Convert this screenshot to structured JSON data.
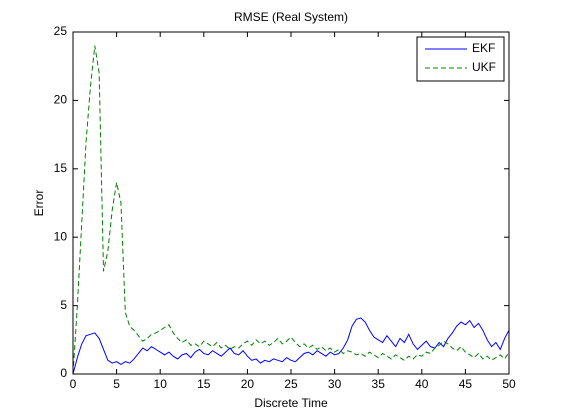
{
  "chart_data": {
    "type": "line",
    "title": "RMSE (Real System)",
    "xlabel": "Discrete Time",
    "ylabel": "Error",
    "x": [
      0,
      0.5,
      1,
      1.5,
      2,
      2.5,
      3,
      3.5,
      4,
      4.5,
      5,
      5.5,
      6,
      6.5,
      7,
      7.5,
      8,
      8.5,
      9,
      9.5,
      10,
      10.5,
      11,
      11.5,
      12,
      12.5,
      13,
      13.5,
      14,
      14.5,
      15,
      15.5,
      16,
      16.5,
      17,
      17.5,
      18,
      18.5,
      19,
      19.5,
      20,
      20.5,
      21,
      21.5,
      22,
      22.5,
      23,
      23.5,
      24,
      24.5,
      25,
      25.5,
      26,
      26.5,
      27,
      27.5,
      28,
      28.5,
      29,
      29.5,
      30,
      30.5,
      31,
      31.5,
      32,
      32.5,
      33,
      33.5,
      34,
      34.5,
      35,
      35.5,
      36,
      36.5,
      37,
      37.5,
      38,
      38.5,
      39,
      39.5,
      40,
      40.5,
      41,
      41.5,
      42,
      42.5,
      43,
      43.5,
      44,
      44.5,
      45,
      45.5,
      46,
      46.5,
      47,
      47.5,
      48,
      48.5,
      49,
      49.5,
      50
    ],
    "series": [
      {
        "name": "EKF",
        "color": "#0000ff",
        "linestyle": "solid",
        "values": [
          0,
          1.2,
          2.2,
          2.8,
          2.9,
          3.0,
          2.6,
          1.8,
          1.0,
          0.8,
          0.9,
          0.7,
          0.9,
          0.8,
          1.1,
          1.5,
          1.9,
          1.7,
          2.0,
          1.8,
          1.6,
          1.4,
          1.6,
          1.3,
          1.1,
          1.4,
          1.5,
          1.2,
          1.6,
          1.8,
          1.5,
          1.4,
          1.7,
          1.5,
          1.3,
          1.6,
          1.9,
          1.5,
          1.4,
          1.7,
          1.3,
          1.0,
          1.1,
          0.8,
          1.0,
          0.9,
          1.1,
          1.0,
          0.9,
          1.2,
          1.0,
          0.9,
          1.2,
          1.5,
          1.6,
          1.4,
          1.7,
          1.5,
          1.3,
          1.6,
          1.4,
          1.5,
          1.9,
          2.5,
          3.5,
          4.0,
          4.1,
          3.8,
          3.2,
          2.7,
          2.5,
          2.3,
          2.8,
          2.4,
          2.0,
          2.6,
          2.3,
          2.9,
          2.2,
          1.8,
          2.1,
          2.4,
          2.0,
          1.9,
          2.3,
          2.0,
          2.6,
          3.0,
          3.5,
          3.8,
          3.6,
          3.9,
          3.4,
          3.7,
          3.2,
          2.5,
          2.0,
          2.3,
          1.8,
          2.6,
          3.2
        ]
      },
      {
        "name": "UKF",
        "color": "#008000",
        "linestyle": "dashed",
        "values": [
          0,
          5,
          11,
          17,
          21,
          24,
          22,
          7.5,
          9,
          12,
          14,
          12.5,
          4.5,
          3.5,
          3.2,
          2.8,
          2.4,
          2.6,
          2.9,
          3.0,
          3.2,
          3.4,
          3.6,
          3.0,
          2.6,
          2.3,
          2.5,
          2.1,
          2.2,
          2.0,
          2.4,
          2.2,
          2.0,
          2.3,
          1.9,
          2.1,
          1.8,
          2.0,
          1.9,
          2.2,
          2.4,
          2.1,
          2.5,
          2.2,
          2.4,
          2.1,
          2.3,
          2.6,
          2.2,
          2.4,
          2.7,
          2.3,
          2.0,
          2.2,
          1.9,
          2.1,
          1.8,
          2.0,
          1.7,
          1.9,
          1.6,
          1.8,
          1.5,
          1.7,
          1.6,
          1.4,
          1.5,
          1.3,
          1.6,
          1.4,
          1.2,
          1.5,
          1.3,
          1.1,
          1.4,
          1.2,
          1.0,
          1.3,
          1.1,
          1.4,
          1.3,
          1.6,
          1.5,
          1.9,
          2.1,
          2.4,
          2.2,
          1.9,
          1.7,
          2.0,
          1.6,
          1.4,
          1.2,
          1.5,
          1.1,
          1.3,
          1.0,
          1.2,
          1.4,
          1.1,
          1.6
        ]
      }
    ],
    "xlim": [
      0,
      50
    ],
    "xticks": [
      0,
      5,
      10,
      15,
      20,
      25,
      30,
      35,
      40,
      45,
      50
    ],
    "ylim": [
      0,
      25
    ],
    "yticks": [
      0,
      5,
      10,
      15,
      20,
      25
    ],
    "legend": "northeast",
    "grid": false
  }
}
